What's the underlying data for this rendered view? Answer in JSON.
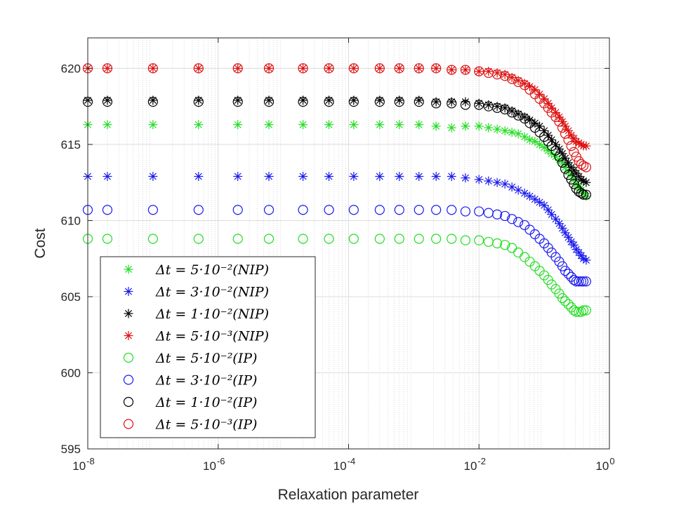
{
  "chart_data": {
    "type": "scatter",
    "title": "",
    "xlabel": "Relaxation parameter",
    "ylabel": "Cost",
    "xscale": "log",
    "xlim": [
      1e-08,
      1
    ],
    "ylim": [
      595,
      622
    ],
    "grid": true,
    "minor_grid": true,
    "legend_position": "bottom-left",
    "x_ticks": [
      {
        "value": 1e-08,
        "base": "10",
        "exp": "-8"
      },
      {
        "value": 1e-06,
        "base": "10",
        "exp": "-6"
      },
      {
        "value": 0.0001,
        "base": "10",
        "exp": "-4"
      },
      {
        "value": 0.01,
        "base": "10",
        "exp": "-2"
      },
      {
        "value": 1,
        "base": "10",
        "exp": "0"
      }
    ],
    "y_ticks": [
      595,
      600,
      605,
      610,
      615,
      620
    ],
    "x": [
      1e-08,
      2e-08,
      1e-07,
      5e-07,
      2e-06,
      6e-06,
      2e-05,
      5e-05,
      0.00012,
      0.0003,
      0.0006,
      0.0012,
      0.0022,
      0.0038,
      0.0062,
      0.01,
      0.014,
      0.019,
      0.025,
      0.032,
      0.04,
      0.05,
      0.06,
      0.072,
      0.085,
      0.1,
      0.115,
      0.13,
      0.15,
      0.17,
      0.19,
      0.21,
      0.235,
      0.26,
      0.285,
      0.31,
      0.34,
      0.37,
      0.4,
      0.44
    ],
    "series": [
      {
        "name": "Δt = 5·10⁻²(NIP)",
        "legend_label": "Δt = 5·10⁻²(NIP)",
        "marker": "star",
        "color": "#22dd22",
        "values": [
          616.3,
          616.3,
          616.3,
          616.3,
          616.3,
          616.3,
          616.3,
          616.3,
          616.3,
          616.3,
          616.3,
          616.3,
          616.2,
          616.1,
          616.2,
          616.2,
          616.1,
          616.0,
          615.9,
          615.8,
          615.7,
          615.5,
          615.3,
          615.2,
          615.0,
          614.8,
          614.6,
          614.4,
          614.2,
          614.0,
          613.8,
          613.5,
          613.2,
          613.0,
          612.7,
          612.4,
          612.2,
          612.0,
          611.8,
          611.6
        ]
      },
      {
        "name": "Δt = 3·10⁻²(NIP)",
        "legend_label": "Δt = 3·10⁻²(NIP)",
        "marker": "star",
        "color": "#1a1aee",
        "values": [
          612.9,
          612.9,
          612.9,
          612.9,
          612.9,
          612.9,
          612.9,
          612.9,
          612.9,
          612.9,
          612.9,
          612.9,
          612.9,
          612.9,
          612.8,
          612.7,
          612.6,
          612.5,
          612.4,
          612.2,
          612.0,
          611.8,
          611.6,
          611.4,
          611.2,
          611.0,
          610.7,
          610.4,
          610.1,
          609.8,
          609.5,
          609.2,
          608.9,
          608.6,
          608.4,
          608.1,
          607.9,
          607.7,
          607.5,
          607.4
        ]
      },
      {
        "name": "Δt = 1·10⁻²(NIP)",
        "legend_label": "Δt = 1·10⁻²(NIP)",
        "marker": "star",
        "color": "#000000",
        "values": [
          617.9,
          617.9,
          617.9,
          617.9,
          617.9,
          617.9,
          617.9,
          617.9,
          617.9,
          617.9,
          617.9,
          617.9,
          617.8,
          617.8,
          617.8,
          617.7,
          617.6,
          617.5,
          617.4,
          617.2,
          617.0,
          616.8,
          616.6,
          616.4,
          616.2,
          615.9,
          615.6,
          615.3,
          615.0,
          614.7,
          614.4,
          614.1,
          613.8,
          613.5,
          613.3,
          613.1,
          612.9,
          612.7,
          612.6,
          612.5
        ]
      },
      {
        "name": "Δt = 5·10⁻³(NIP)",
        "legend_label": "Δt = 5·10⁻³(NIP)",
        "marker": "star",
        "color": "#dd1111",
        "values": [
          620.0,
          620.0,
          620.0,
          620.0,
          620.0,
          620.0,
          620.0,
          620.0,
          620.0,
          620.0,
          620.0,
          620.0,
          620.0,
          619.9,
          619.9,
          619.8,
          619.8,
          619.7,
          619.6,
          619.4,
          619.2,
          619.0,
          618.8,
          618.6,
          618.3,
          618.0,
          617.7,
          617.4,
          617.1,
          616.8,
          616.5,
          616.2,
          615.9,
          615.6,
          615.4,
          615.2,
          615.1,
          615.0,
          614.9,
          614.9
        ]
      },
      {
        "name": "Δt = 5·10⁻²(IP)",
        "legend_label": "Δt = 5·10⁻²(IP)",
        "marker": "circle",
        "color": "#22dd22",
        "values": [
          608.8,
          608.8,
          608.8,
          608.8,
          608.8,
          608.8,
          608.8,
          608.8,
          608.8,
          608.8,
          608.8,
          608.8,
          608.8,
          608.8,
          608.7,
          608.7,
          608.6,
          608.5,
          608.4,
          608.2,
          607.9,
          607.6,
          607.3,
          607.0,
          606.7,
          606.4,
          606.1,
          605.8,
          605.5,
          605.2,
          604.9,
          604.7,
          604.5,
          604.3,
          604.1,
          604.0,
          604.0,
          604.0,
          604.1,
          604.1
        ]
      },
      {
        "name": "Δt = 3·10⁻²(IP)",
        "legend_label": "Δt = 3·10⁻²(IP)",
        "marker": "circle",
        "color": "#1a1aee",
        "values": [
          610.7,
          610.7,
          610.7,
          610.7,
          610.7,
          610.7,
          610.7,
          610.7,
          610.7,
          610.7,
          610.7,
          610.7,
          610.7,
          610.7,
          610.6,
          610.6,
          610.5,
          610.4,
          610.3,
          610.1,
          609.9,
          609.7,
          609.4,
          609.1,
          608.8,
          608.5,
          608.2,
          607.9,
          607.6,
          607.3,
          607.0,
          606.7,
          606.5,
          606.3,
          606.1,
          606.0,
          606.0,
          606.0,
          606.0,
          606.0
        ]
      },
      {
        "name": "Δt = 1·10⁻²(IP)",
        "legend_label": "Δt = 1·10⁻²(IP)",
        "marker": "circle",
        "color": "#000000",
        "values": [
          617.8,
          617.8,
          617.8,
          617.8,
          617.8,
          617.8,
          617.8,
          617.8,
          617.8,
          617.8,
          617.8,
          617.8,
          617.7,
          617.7,
          617.6,
          617.6,
          617.5,
          617.4,
          617.3,
          617.1,
          616.9,
          616.7,
          616.4,
          616.1,
          615.8,
          615.5,
          615.2,
          614.9,
          614.6,
          614.2,
          613.8,
          613.4,
          613.0,
          612.7,
          612.4,
          612.1,
          611.9,
          611.8,
          611.7,
          611.7
        ]
      },
      {
        "name": "Δt = 5·10⁻³(IP)",
        "legend_label": "Δt = 5·10⁻³(IP)",
        "marker": "circle",
        "color": "#dd1111",
        "values": [
          620.0,
          620.0,
          620.0,
          620.0,
          620.0,
          620.0,
          620.0,
          620.0,
          620.0,
          620.0,
          620.0,
          620.0,
          620.0,
          619.9,
          619.9,
          619.8,
          619.7,
          619.6,
          619.5,
          619.3,
          619.1,
          618.9,
          618.6,
          618.3,
          618.0,
          617.7,
          617.4,
          617.1,
          616.8,
          616.5,
          616.1,
          615.7,
          615.3,
          614.9,
          614.5,
          614.2,
          613.9,
          613.7,
          613.6,
          613.5
        ]
      }
    ]
  }
}
